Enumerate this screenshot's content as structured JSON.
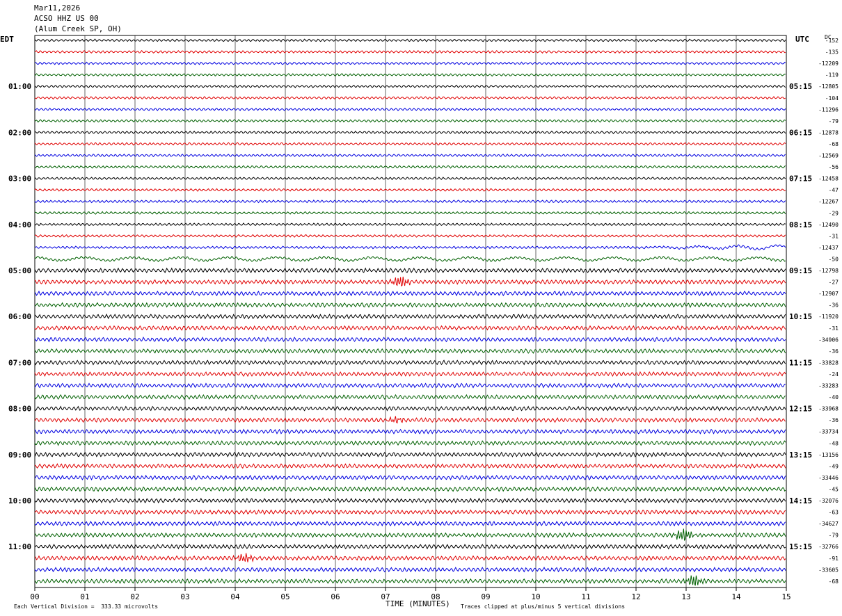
{
  "header": {
    "date": "Mar11,2026",
    "station": "ACSO HHZ US 00",
    "location": "(Alum Creek SP, OH)"
  },
  "left_zone": "EDT",
  "right_zone": "UTC",
  "dc_label": "DC",
  "footer": {
    "division": "Each Vertical Division =  333.33 microvolts",
    "xlabel": "TIME (MINUTES)",
    "clipping": "Traces clipped at plus/minus 5 vertical divisions"
  },
  "colors": {
    "trace_cycle": [
      "#000000",
      "#e00000",
      "#0000e0",
      "#006000"
    ],
    "grid": "#000000"
  },
  "chart_data": {
    "type": "line",
    "subtype": "helicorder",
    "xlabel": "TIME (MINUTES)",
    "x_ticks": [
      "00",
      "01",
      "02",
      "03",
      "04",
      "05",
      "06",
      "07",
      "08",
      "09",
      "10",
      "11",
      "12",
      "13",
      "14",
      "15"
    ],
    "xlim": [
      0,
      15
    ],
    "trace_count": 48,
    "minutes_per_trace": 15,
    "left_hour_labels": [
      "01:00",
      "02:00",
      "03:00",
      "04:00",
      "05:00",
      "06:00",
      "07:00",
      "08:00",
      "09:00",
      "10:00",
      "11:00"
    ],
    "right_hour_labels": [
      "05:15",
      "06:15",
      "07:15",
      "08:15",
      "09:15",
      "10:15",
      "11:15",
      "12:15",
      "13:15",
      "14:15",
      "15:15"
    ],
    "dc_offsets": [
      "-152",
      "-135",
      "-12209",
      "-119",
      "-12805",
      "-104",
      "-11296",
      "-79",
      "-12878",
      "-68",
      "-12569",
      "-56",
      "-12458",
      "-47",
      "-12267",
      "-29",
      "-12490",
      "-31",
      "-12437",
      "-50",
      "-12798",
      "-27",
      "-12907",
      "-36",
      "-11920",
      "-31",
      "-34906",
      "-36",
      "-33828",
      "-24",
      "-33283",
      "-40",
      "-33968",
      "-36",
      "-33734",
      "-48",
      "-13156",
      "-49",
      "-33446",
      "-45",
      "-32076",
      "-63",
      "-34627",
      "-79",
      "-32766",
      "-91",
      "-33605",
      "-68"
    ],
    "events": [
      {
        "trace": 21,
        "minute": 7.3,
        "amplitude": 3.0
      },
      {
        "trace": 33,
        "minute": 7.2,
        "amplitude": 1.5
      },
      {
        "trace": 43,
        "minute": 12.95,
        "amplitude": 3.5
      },
      {
        "trace": 45,
        "minute": 4.2,
        "amplitude": 2.5
      },
      {
        "trace": 47,
        "minute": 13.15,
        "amplitude": 3.0
      }
    ]
  }
}
